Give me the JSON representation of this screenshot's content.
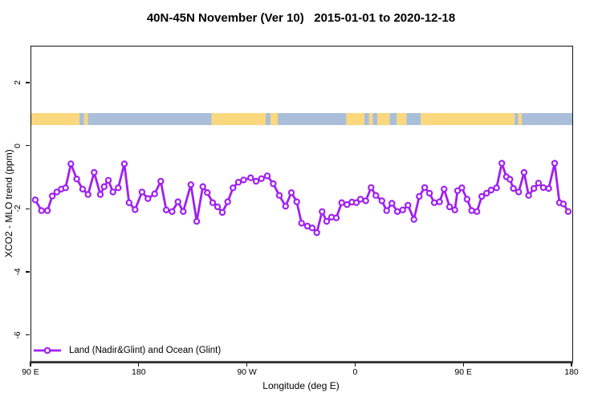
{
  "title": "40N-45N November (Ver 10)   2015-01-01 to 2020-12-18",
  "colors": {
    "series": "#A020F0",
    "marker_fill": "#FFFFFF",
    "land": "#FBD77D",
    "ocean": "#A9BFD9",
    "axis": "#111111"
  },
  "legend": {
    "label": "Land (Nadir&Glint) and Ocean (Glint)"
  },
  "chart_data": {
    "type": "line",
    "title": "40N-45N November (Ver 10)   2015-01-01 to 2020-12-18",
    "xlabel": "Longitude (deg E)",
    "ylabel": "XCO2 - MLO trend (ppm)",
    "x_range": [
      90,
      540
    ],
    "ylim": [
      -6.84,
      3.17
    ],
    "grid": false,
    "legend_position": "bottom-left",
    "x_ticks": [
      {
        "deg": 90,
        "label": "90 E"
      },
      {
        "deg": 180,
        "label": "180"
      },
      {
        "deg": 270,
        "label": "90 W"
      },
      {
        "deg": 360,
        "label": "0"
      },
      {
        "deg": 450,
        "label": "90 E"
      },
      {
        "deg": 540,
        "label": "180"
      }
    ],
    "y_ticks": [
      {
        "value": 2,
        "label": "2"
      },
      {
        "value": 0,
        "label": "0"
      },
      {
        "value": -2,
        "label": "-2"
      },
      {
        "value": -4,
        "label": "-4"
      },
      {
        "value": -6,
        "label": "-6"
      }
    ],
    "map_strip": {
      "description": "latitude band 40N-45N land/ocean strip",
      "value_top": 1.06,
      "value_bottom": 0.68,
      "segments": [
        [
          90,
          130,
          "land"
        ],
        [
          130,
          134,
          "ocean"
        ],
        [
          134,
          137,
          "land"
        ],
        [
          137,
          240,
          "ocean"
        ],
        [
          240,
          285,
          "land"
        ],
        [
          285,
          289,
          "ocean"
        ],
        [
          289,
          295,
          "land"
        ],
        [
          295,
          352,
          "ocean"
        ],
        [
          352,
          367,
          "land"
        ],
        [
          367,
          371,
          "ocean"
        ],
        [
          371,
          374,
          "land"
        ],
        [
          374,
          378,
          "ocean"
        ],
        [
          378,
          388,
          "land"
        ],
        [
          388,
          394,
          "ocean"
        ],
        [
          394,
          402,
          "land"
        ],
        [
          402,
          414,
          "ocean"
        ],
        [
          414,
          492,
          "land"
        ],
        [
          492,
          495,
          "ocean"
        ],
        [
          495,
          498,
          "land"
        ],
        [
          498,
          540,
          "ocean"
        ]
      ]
    },
    "series": [
      {
        "name": "Land (Nadir&Glint) and Ocean (Glint)",
        "color": "#A020F0",
        "points": [
          [
            93.3,
            -1.69
          ],
          [
            98.5,
            -2.03
          ],
          [
            103.4,
            -2.03
          ],
          [
            107.4,
            -1.57
          ],
          [
            111.2,
            -1.44
          ],
          [
            114.9,
            -1.35
          ],
          [
            118.5,
            -1.31
          ],
          [
            122.9,
            -0.55
          ],
          [
            127.8,
            -1.03
          ],
          [
            132.7,
            -1.35
          ],
          [
            137.2,
            -1.52
          ],
          [
            142.3,
            -0.82
          ],
          [
            147.4,
            -1.52
          ],
          [
            150.6,
            -1.27
          ],
          [
            154.1,
            -1.07
          ],
          [
            157.9,
            -1.44
          ],
          [
            162.3,
            -1.31
          ],
          [
            167.4,
            -0.55
          ],
          [
            171.3,
            -1.78
          ],
          [
            176.3,
            -2.0
          ],
          [
            182.1,
            -1.44
          ],
          [
            187.0,
            -1.65
          ],
          [
            192.6,
            -1.5
          ],
          [
            197.7,
            -1.1
          ],
          [
            202.2,
            -2.01
          ],
          [
            207.1,
            -2.06
          ],
          [
            212.0,
            -1.75
          ],
          [
            216.4,
            -2.06
          ],
          [
            222.7,
            -1.21
          ],
          [
            227.6,
            -2.37
          ],
          [
            232.7,
            -1.27
          ],
          [
            236.4,
            -1.46
          ],
          [
            240.9,
            -1.78
          ],
          [
            244.9,
            -1.91
          ],
          [
            248.9,
            -2.09
          ],
          [
            253.4,
            -1.75
          ],
          [
            257.8,
            -1.31
          ],
          [
            262.3,
            -1.13
          ],
          [
            266.6,
            -1.06
          ],
          [
            272.5,
            -0.99
          ],
          [
            277.0,
            -1.1
          ],
          [
            281.4,
            -1.02
          ],
          [
            286.3,
            -0.93
          ],
          [
            291.2,
            -1.18
          ],
          [
            296.3,
            -1.55
          ],
          [
            301.5,
            -1.89
          ],
          [
            306.3,
            -1.46
          ],
          [
            310.8,
            -1.75
          ],
          [
            314.8,
            -2.43
          ],
          [
            319.7,
            -2.52
          ],
          [
            323.7,
            -2.58
          ],
          [
            327.5,
            -2.73
          ],
          [
            331.9,
            -2.06
          ],
          [
            335.7,
            -2.37
          ],
          [
            339.7,
            -2.24
          ],
          [
            343.7,
            -2.26
          ],
          [
            348.2,
            -1.78
          ],
          [
            352.6,
            -1.84
          ],
          [
            356.7,
            -1.76
          ],
          [
            360.4,
            -1.78
          ],
          [
            363.8,
            -1.67
          ],
          [
            368.2,
            -1.72
          ],
          [
            372.6,
            -1.3
          ],
          [
            376.6,
            -1.55
          ],
          [
            381.6,
            -1.72
          ],
          [
            385.6,
            -2.03
          ],
          [
            390.0,
            -1.8
          ],
          [
            394.5,
            -2.06
          ],
          [
            398.9,
            -2.01
          ],
          [
            403.3,
            -1.86
          ],
          [
            408.3,
            -2.31
          ],
          [
            412.7,
            -1.58
          ],
          [
            417.2,
            -1.3
          ],
          [
            421.2,
            -1.48
          ],
          [
            425.2,
            -1.78
          ],
          [
            429.6,
            -1.75
          ],
          [
            433.4,
            -1.35
          ],
          [
            437.9,
            -1.91
          ],
          [
            442.3,
            -2.01
          ],
          [
            444.5,
            -1.4
          ],
          [
            448.1,
            -1.31
          ],
          [
            452.5,
            -1.67
          ],
          [
            456.3,
            -2.03
          ],
          [
            460.7,
            -2.06
          ],
          [
            464.7,
            -1.58
          ],
          [
            468.7,
            -1.48
          ],
          [
            472.5,
            -1.38
          ],
          [
            477.0,
            -1.31
          ],
          [
            481.4,
            -0.53
          ],
          [
            485.2,
            -0.96
          ],
          [
            488.1,
            -1.04
          ],
          [
            491.0,
            -1.33
          ],
          [
            495.4,
            -1.44
          ],
          [
            499.9,
            -0.82
          ],
          [
            503.7,
            -1.55
          ],
          [
            508.1,
            -1.33
          ],
          [
            511.9,
            -1.16
          ],
          [
            515.9,
            -1.3
          ],
          [
            520.4,
            -1.33
          ],
          [
            525.3,
            -0.53
          ],
          [
            529.3,
            -1.78
          ],
          [
            532.6,
            -1.82
          ],
          [
            536.6,
            -2.06
          ]
        ]
      }
    ]
  }
}
